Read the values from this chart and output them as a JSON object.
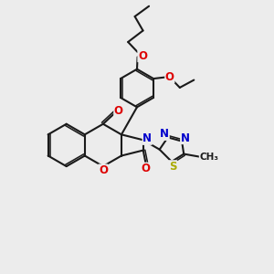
{
  "bg_color": "#ececec",
  "bond_color": "#1a1a1a",
  "bond_width": 1.5,
  "atom_colors": {
    "O": "#dd0000",
    "N": "#0000cc",
    "S": "#aaaa00",
    "C": "#1a1a1a"
  },
  "font_size": 8.5
}
